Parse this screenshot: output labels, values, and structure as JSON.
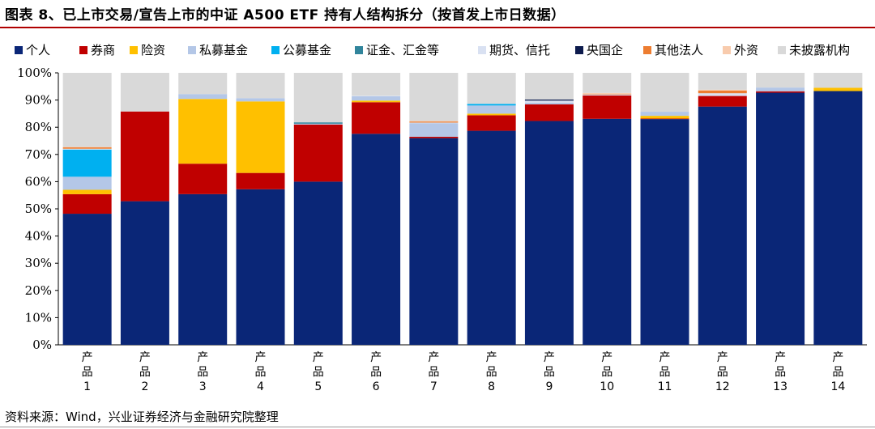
{
  "figure": {
    "title": "图表 8、已上市交易/宣告上市的中证 A500 ETF 持有人结构拆分（按首发上市日数据）",
    "source": "资料来源：Wind，兴业证券经济与金融研究院整理"
  },
  "chart_data": {
    "type": "bar",
    "stacked": true,
    "categories": [
      "产品1",
      "产品2",
      "产品3",
      "产品4",
      "产品5",
      "产品6",
      "产品7",
      "产品8",
      "产品9",
      "产品10",
      "产品11",
      "产品12",
      "产品13",
      "产品14"
    ],
    "ylim": [
      0,
      100
    ],
    "yticks": [
      "0%",
      "10%",
      "20%",
      "30%",
      "40%",
      "50%",
      "60%",
      "70%",
      "80%",
      "90%",
      "100%"
    ],
    "legend_position": "top",
    "series": [
      {
        "name": "个人",
        "color": "#0a2677",
        "values": [
          48.2,
          52.8,
          55.4,
          57.2,
          60.0,
          77.6,
          76.0,
          78.7,
          82.3,
          83.1,
          83.0,
          87.6,
          92.7,
          93.3
        ]
      },
      {
        "name": "券商",
        "color": "#c00000",
        "values": [
          7.2,
          33.0,
          11.2,
          6.0,
          21.0,
          11.6,
          0.5,
          5.7,
          6.1,
          8.6,
          0.2,
          3.9,
          0.5,
          0.0
        ]
      },
      {
        "name": "险资",
        "color": "#ffc000",
        "values": [
          1.6,
          0.0,
          23.8,
          26.3,
          0.0,
          0.6,
          0.0,
          0.6,
          0.0,
          0.0,
          1.0,
          0.0,
          0.0,
          1.2
        ]
      },
      {
        "name": "私募基金",
        "color": "#b4c7e7",
        "values": [
          4.8,
          0.0,
          1.8,
          1.2,
          0.3,
          1.6,
          5.0,
          3.0,
          0.6,
          0.0,
          1.5,
          0.0,
          1.4,
          0.0
        ]
      },
      {
        "name": "公募基金",
        "color": "#00b0f0",
        "values": [
          10.0,
          0.0,
          0.0,
          0.0,
          0.0,
          0.0,
          0.0,
          0.6,
          0.0,
          0.0,
          0.0,
          0.0,
          0.0,
          0.0
        ]
      },
      {
        "name": "证金、汇金等",
        "color": "#31859c",
        "values": [
          0.0,
          0.0,
          0.0,
          0.0,
          0.5,
          0.0,
          0.0,
          0.0,
          0.0,
          0.0,
          0.0,
          0.0,
          0.0,
          0.0
        ]
      },
      {
        "name": "期货、信托",
        "color": "#d9e1f2",
        "values": [
          0.3,
          0.0,
          0.0,
          0.0,
          0.0,
          0.2,
          0.2,
          0.0,
          0.8,
          0.4,
          0.0,
          1.0,
          0.0,
          0.0
        ]
      },
      {
        "name": "央国企",
        "color": "#0d1b4d",
        "values": [
          0.0,
          0.0,
          0.0,
          0.0,
          0.0,
          0.0,
          0.0,
          0.0,
          0.4,
          0.0,
          0.0,
          0.0,
          0.0,
          0.0
        ]
      },
      {
        "name": "其他法人",
        "color": "#ed7d31",
        "values": [
          0.5,
          0.0,
          0.0,
          0.0,
          0.0,
          0.0,
          0.4,
          0.0,
          0.0,
          0.2,
          0.0,
          1.0,
          0.0,
          0.0
        ]
      },
      {
        "name": "外资",
        "color": "#f8cbad",
        "values": [
          0.2,
          0.0,
          0.0,
          0.0,
          0.0,
          0.0,
          0.2,
          0.0,
          0.0,
          0.3,
          0.0,
          0.3,
          0.0,
          0.0
        ]
      },
      {
        "name": "未披露机构",
        "color": "#d9d9d9",
        "values": [
          27.2,
          14.2,
          7.8,
          9.3,
          18.2,
          8.4,
          17.7,
          11.4,
          9.8,
          7.4,
          14.3,
          6.2,
          5.4,
          5.5
        ]
      }
    ]
  }
}
